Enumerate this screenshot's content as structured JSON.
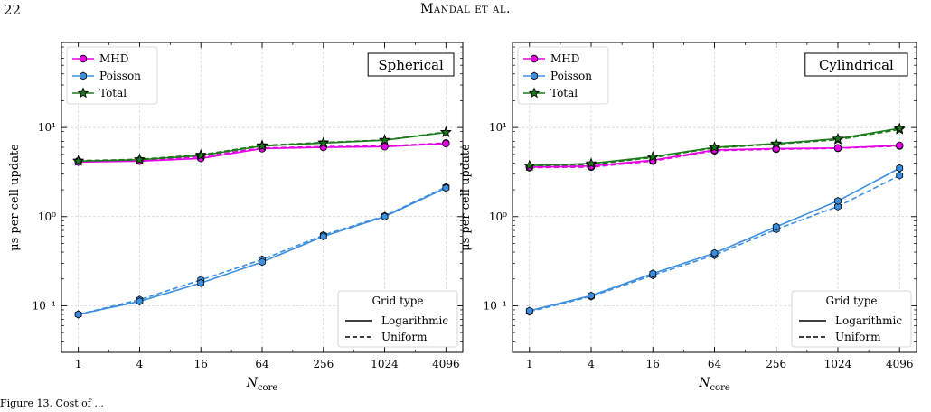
{
  "page": {
    "number": "22",
    "running_head": "Mandal et al.",
    "caption": "Figure 13. Cost of ..."
  },
  "chart_data": [
    {
      "type": "line",
      "title": "Spherical",
      "xlabel": "N",
      "xlabel_sub": "core",
      "ylabel": "μs per cell update",
      "yscale": "log",
      "ylim": [
        0.03,
        90
      ],
      "xscale": "log2",
      "x": [
        1,
        4,
        16,
        64,
        256,
        1024,
        4096
      ],
      "xtick_labels": [
        "1",
        "4",
        "16",
        "64",
        "256",
        "1024",
        "4096"
      ],
      "ytick_labels": [
        "10⁻¹",
        "10⁰",
        "10¹"
      ],
      "grid": true,
      "series": [
        {
          "name": "MHD",
          "color": "#e600e6",
          "marker": "circle",
          "grid_type": "Logarithmic",
          "values": [
            4.1,
            4.2,
            4.5,
            5.8,
            6.0,
            6.1,
            6.6
          ]
        },
        {
          "name": "MHD",
          "color": "#e600e6",
          "marker": "circle",
          "grid_type": "Uniform",
          "values": [
            4.2,
            4.3,
            4.7,
            5.9,
            6.1,
            6.2,
            6.7
          ]
        },
        {
          "name": "Poisson",
          "color": "#3c8fe0",
          "marker": "hexagon",
          "grid_type": "Logarithmic",
          "values": [
            0.08,
            0.112,
            0.18,
            0.31,
            0.6,
            1.0,
            2.1
          ]
        },
        {
          "name": "Poisson",
          "color": "#3c8fe0",
          "marker": "hexagon",
          "grid_type": "Uniform",
          "values": [
            0.08,
            0.117,
            0.195,
            0.33,
            0.62,
            1.02,
            2.15
          ]
        },
        {
          "name": "Total",
          "color": "#1a7a1a",
          "marker": "star",
          "grid_type": "Logarithmic",
          "values": [
            4.2,
            4.35,
            4.85,
            6.2,
            6.7,
            7.2,
            8.8
          ]
        },
        {
          "name": "Total",
          "color": "#1a7a1a",
          "marker": "star",
          "grid_type": "Uniform",
          "values": [
            4.25,
            4.4,
            4.95,
            6.3,
            6.8,
            7.25,
            8.9
          ]
        }
      ],
      "legend": {
        "position": "top-left",
        "entries": [
          "MHD",
          "Poisson",
          "Total"
        ]
      },
      "style_legend": {
        "position": "bottom-right",
        "title": "Grid type",
        "entries": [
          "Logarithmic",
          "Uniform"
        ]
      }
    },
    {
      "type": "line",
      "title": "Cylindrical",
      "xlabel": "N",
      "xlabel_sub": "core",
      "ylabel": "μs per cell update",
      "yscale": "log",
      "ylim": [
        0.03,
        90
      ],
      "xscale": "log2",
      "x": [
        1,
        4,
        16,
        64,
        256,
        1024,
        4096
      ],
      "xtick_labels": [
        "1",
        "4",
        "16",
        "64",
        "256",
        "1024",
        "4096"
      ],
      "ytick_labels": [
        "10⁻¹",
        "10⁰",
        "10¹"
      ],
      "grid": true,
      "series": [
        {
          "name": "MHD",
          "color": "#e600e6",
          "marker": "circle",
          "grid_type": "Logarithmic",
          "values": [
            3.6,
            3.7,
            4.3,
            5.6,
            5.8,
            5.9,
            6.3
          ]
        },
        {
          "name": "MHD",
          "color": "#e600e6",
          "marker": "circle",
          "grid_type": "Uniform",
          "values": [
            3.55,
            3.6,
            4.2,
            5.5,
            5.7,
            5.85,
            6.2
          ]
        },
        {
          "name": "Poisson",
          "color": "#3c8fe0",
          "marker": "hexagon",
          "grid_type": "Logarithmic",
          "values": [
            0.088,
            0.13,
            0.23,
            0.39,
            0.77,
            1.5,
            3.5
          ]
        },
        {
          "name": "Poisson",
          "color": "#3c8fe0",
          "marker": "hexagon",
          "grid_type": "Uniform",
          "values": [
            0.086,
            0.127,
            0.22,
            0.37,
            0.72,
            1.3,
            2.9
          ]
        },
        {
          "name": "Total",
          "color": "#1a7a1a",
          "marker": "star",
          "grid_type": "Logarithmic",
          "values": [
            3.75,
            3.95,
            4.7,
            6.0,
            6.6,
            7.5,
            9.8
          ]
        },
        {
          "name": "Total",
          "color": "#1a7a1a",
          "marker": "star",
          "grid_type": "Uniform",
          "values": [
            3.7,
            3.85,
            4.6,
            5.9,
            6.5,
            7.3,
            9.5
          ]
        }
      ],
      "legend": {
        "position": "top-left",
        "entries": [
          "MHD",
          "Poisson",
          "Total"
        ]
      },
      "style_legend": {
        "position": "bottom-right",
        "title": "Grid type",
        "entries": [
          "Logarithmic",
          "Uniform"
        ]
      }
    }
  ]
}
